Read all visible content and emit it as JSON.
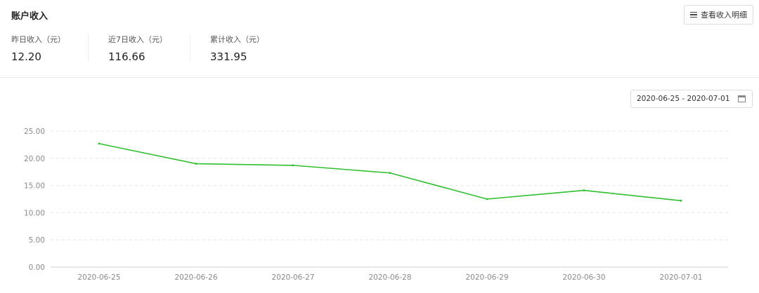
{
  "header": {
    "title": "账户收入",
    "detail_button": "查看收入明细",
    "detail_icon": "menu-icon"
  },
  "stats": [
    {
      "label": "昨日收入（元）",
      "value": "12.20"
    },
    {
      "label": "近7日收入（元）",
      "value": "116.66"
    },
    {
      "label": "累计收入（元）",
      "value": "331.95"
    }
  ],
  "date_range": {
    "value": "2020-06-25 - 2020-07-01",
    "icon": "calendar-icon"
  },
  "chart_data": {
    "type": "line",
    "categories": [
      "2020-06-25",
      "2020-06-26",
      "2020-06-27",
      "2020-06-28",
      "2020-06-29",
      "2020-06-30",
      "2020-07-01"
    ],
    "series": [
      {
        "values": [
          22.7,
          19.0,
          18.7,
          17.3,
          12.5,
          14.1,
          12.2
        ],
        "color": "#2fbf2f"
      }
    ],
    "ylim": [
      0,
      25
    ],
    "yticks": [
      "0.00",
      "5.00",
      "10.00",
      "15.00",
      "20.00",
      "25.00"
    ],
    "grid": true
  }
}
